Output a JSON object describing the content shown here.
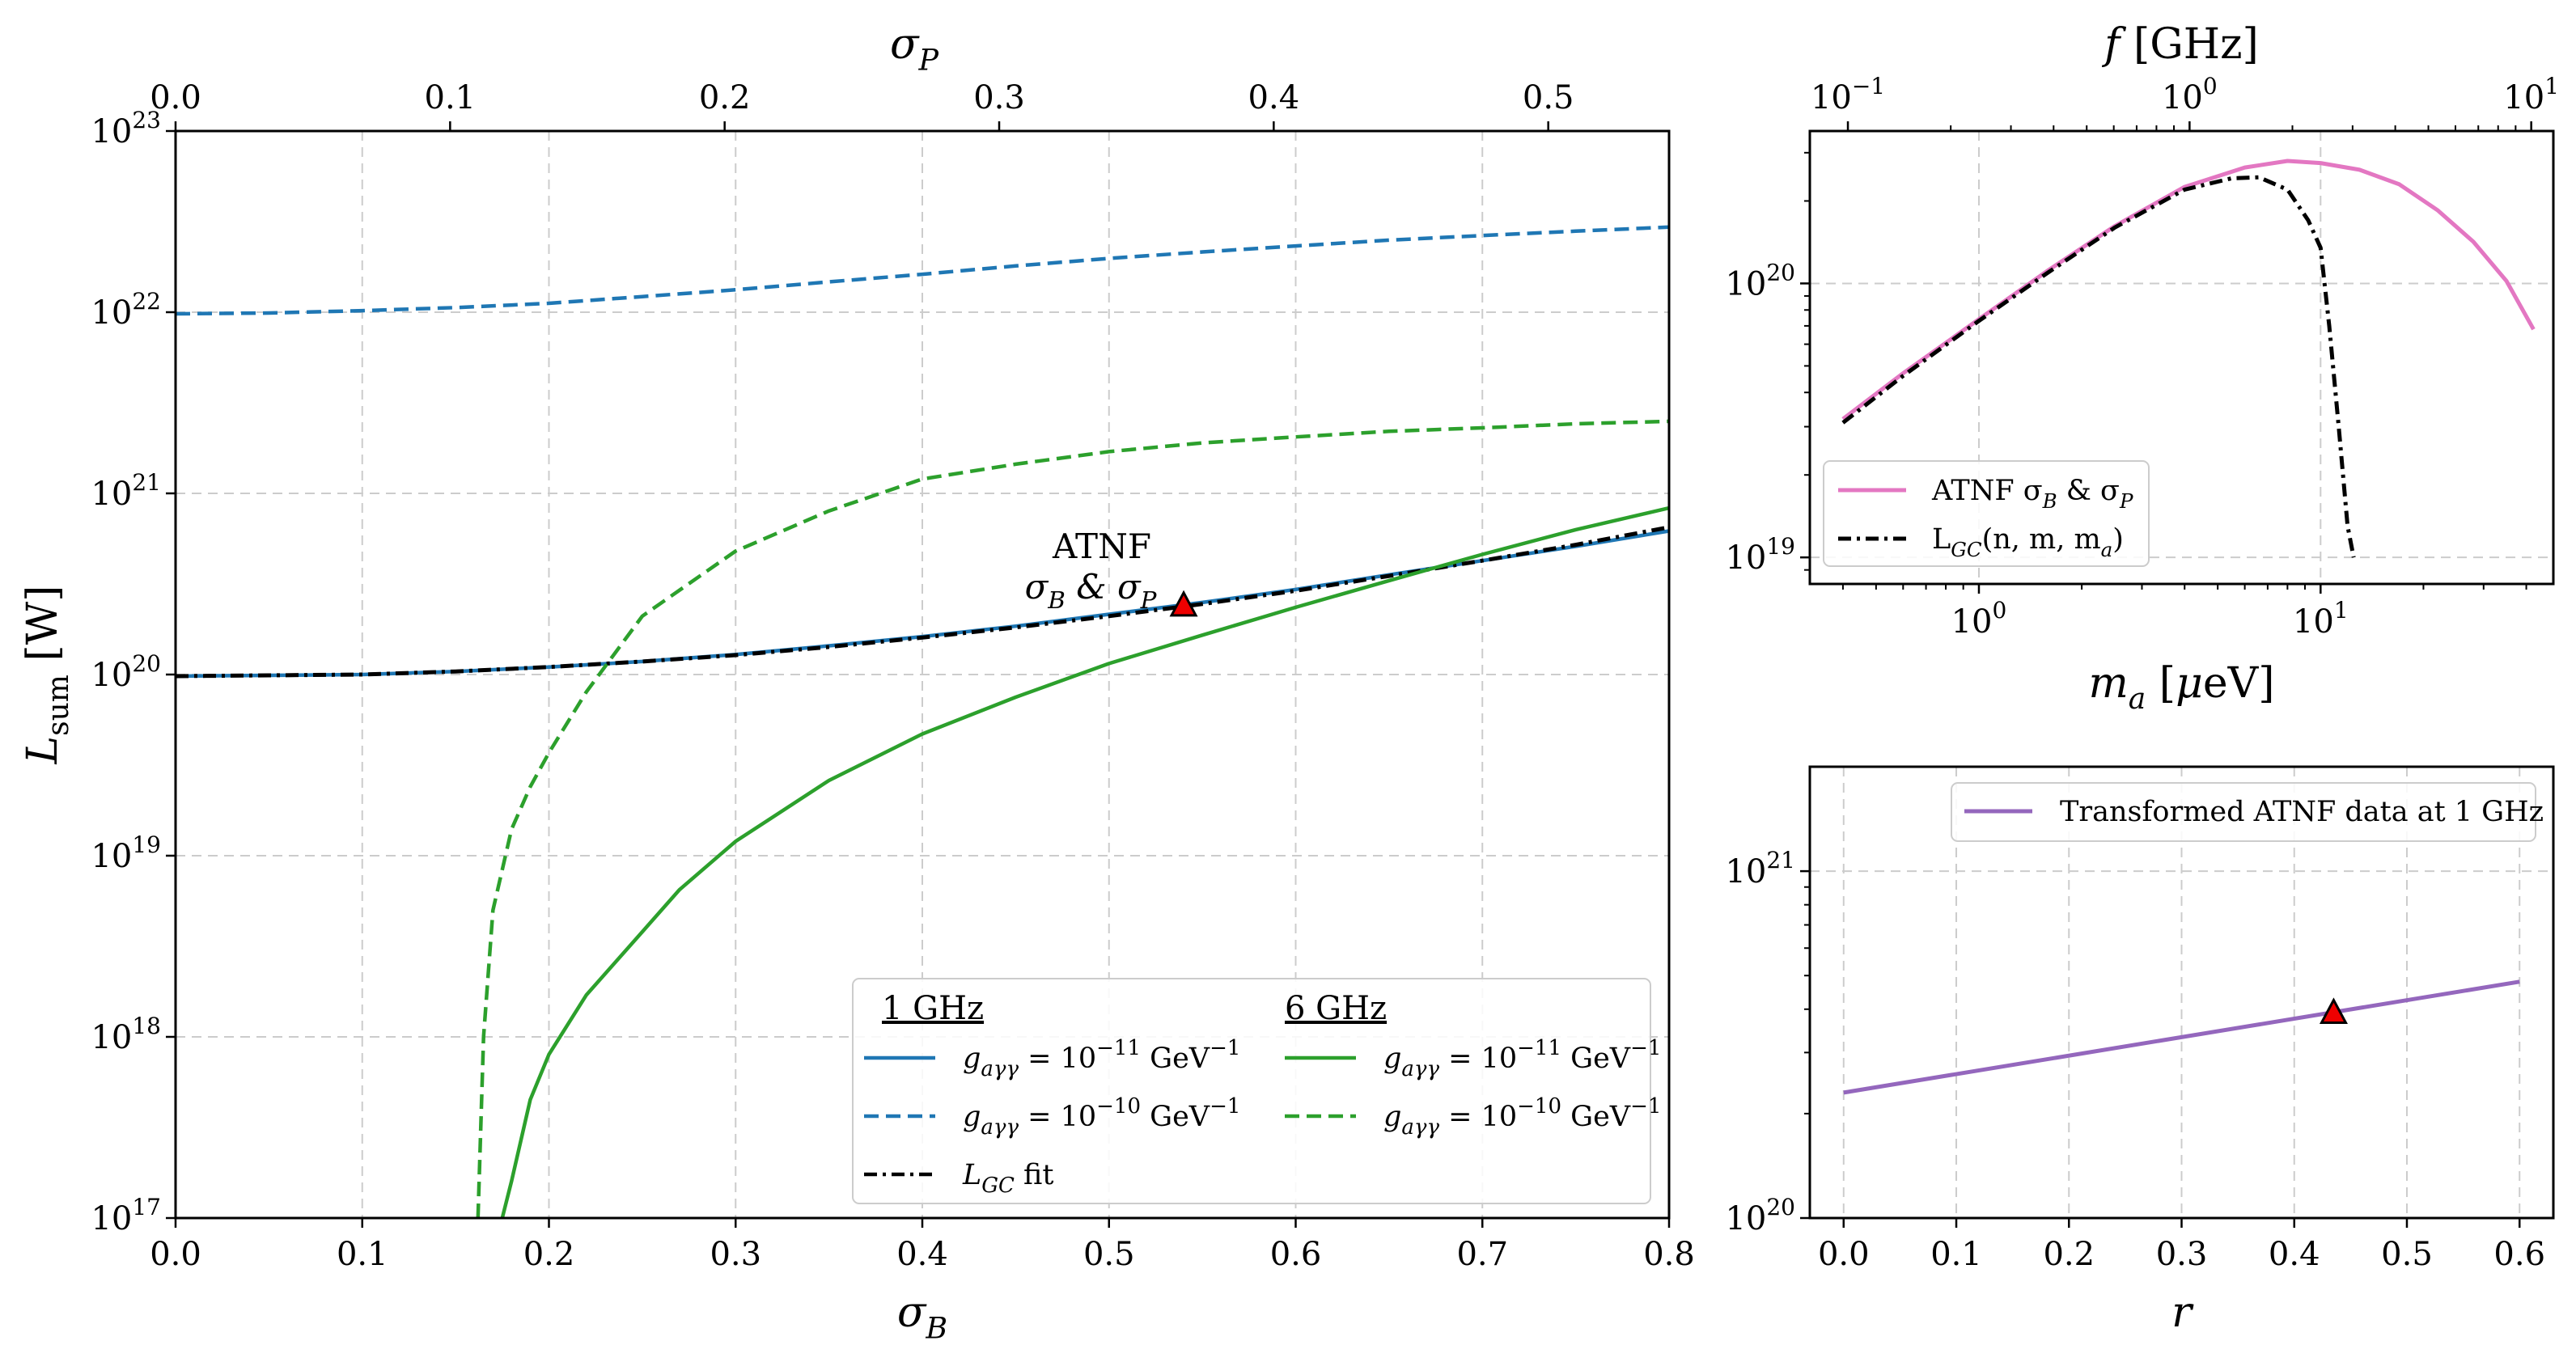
{
  "chart_data": [
    {
      "id": "main",
      "type": "line",
      "xlabel": "σ_B",
      "top_xlabel": "σ_P",
      "ylabel": "L_sum [W]",
      "xlim": [
        0.0,
        0.8
      ],
      "top_xlim": [
        0.0,
        0.544
      ],
      "ylog": true,
      "ylim": [
        1e+17,
        1e+23
      ],
      "x_ticks": [
        "0.0",
        "0.1",
        "0.2",
        "0.3",
        "0.4",
        "0.5",
        "0.6",
        "0.7",
        "0.8"
      ],
      "top_ticks": [
        "0.0",
        "0.1",
        "0.2",
        "0.3",
        "0.4",
        "0.5"
      ],
      "y_ticks": [
        {
          "mant": "10",
          "exp": "17"
        },
        {
          "mant": "10",
          "exp": "18"
        },
        {
          "mant": "10",
          "exp": "19"
        },
        {
          "mant": "10",
          "exp": "20"
        },
        {
          "mant": "10",
          "exp": "21"
        },
        {
          "mant": "10",
          "exp": "22"
        },
        {
          "mant": "10",
          "exp": "23"
        }
      ],
      "grid": true,
      "annotation": {
        "line1": "ATNF",
        "line2": "σ_B & σ_P",
        "x": 0.54,
        "y": 2.4e+20
      },
      "series": [
        {
          "name": "1 GHz, g_aγγ = 10^-11 GeV^-1",
          "color": "#1f77b4",
          "dash": "solid",
          "x": [
            0,
            0.05,
            0.1,
            0.15,
            0.2,
            0.25,
            0.3,
            0.35,
            0.4,
            0.45,
            0.5,
            0.55,
            0.6,
            0.65,
            0.7,
            0.75,
            0.8
          ],
          "y": [
            9.8e+19,
            9.9e+19,
            1e+20,
            1.04e+20,
            1.1e+20,
            1.18e+20,
            1.29e+20,
            1.44e+20,
            1.62e+20,
            1.85e+20,
            2.15e+20,
            2.5e+20,
            2.95e+20,
            3.55e+20,
            4.25e+20,
            5.1e+20,
            6.2e+20
          ]
        },
        {
          "name": "1 GHz, g_aγγ = 10^-10 GeV^-1",
          "color": "#1f77b4",
          "dash": "dashed",
          "x": [
            0,
            0.05,
            0.1,
            0.15,
            0.2,
            0.25,
            0.3,
            0.35,
            0.4,
            0.45,
            0.5,
            0.55,
            0.6,
            0.65,
            0.7,
            0.75,
            0.8
          ],
          "y": [
            9.8e+21,
            9.9e+21,
            1.02e+22,
            1.06e+22,
            1.12e+22,
            1.22e+22,
            1.33e+22,
            1.47e+22,
            1.62e+22,
            1.8e+22,
            1.98e+22,
            2.15e+22,
            2.32e+22,
            2.5e+22,
            2.65e+22,
            2.8e+22,
            2.95e+22
          ]
        },
        {
          "name": "L_GC fit",
          "color": "#000000",
          "dash": "dashdot",
          "x": [
            0,
            0.05,
            0.1,
            0.15,
            0.2,
            0.25,
            0.3,
            0.35,
            0.4,
            0.45,
            0.5,
            0.55,
            0.6,
            0.65,
            0.7,
            0.75,
            0.8
          ],
          "y": [
            9.8e+19,
            9.9e+19,
            1e+20,
            1.04e+20,
            1.1e+20,
            1.18e+20,
            1.28e+20,
            1.42e+20,
            1.6e+20,
            1.82e+20,
            2.1e+20,
            2.45e+20,
            2.9e+20,
            3.5e+20,
            4.25e+20,
            5.2e+20,
            6.5e+20
          ]
        },
        {
          "name": "6 GHz, g_aγγ = 10^-11 GeV^-1",
          "color": "#2ca02c",
          "dash": "solid",
          "x": [
            0.175,
            0.18,
            0.19,
            0.2,
            0.22,
            0.25,
            0.27,
            0.3,
            0.35,
            0.4,
            0.45,
            0.5,
            0.55,
            0.6,
            0.65,
            0.7,
            0.75,
            0.8
          ],
          "y": [
            1e+17,
            1.6e+17,
            4.5e+17,
            8e+17,
            1.7e+18,
            3.8e+18,
            6.5e+18,
            1.2e+19,
            2.6e+19,
            4.7e+19,
            7.5e+19,
            1.15e+20,
            1.65e+20,
            2.35e+20,
            3.3e+20,
            4.6e+20,
            6.3e+20,
            8.3e+20
          ]
        },
        {
          "name": "6 GHz, g_aγγ = 10^-10 GeV^-1",
          "color": "#2ca02c",
          "dash": "dashed",
          "x": [
            0.162,
            0.165,
            0.17,
            0.18,
            0.19,
            0.2,
            0.22,
            0.25,
            0.3,
            0.35,
            0.4,
            0.45,
            0.5,
            0.55,
            0.6,
            0.65,
            0.7,
            0.75,
            0.8
          ],
          "y": [
            1e+17,
            1e+18,
            5e+18,
            1.4e+19,
            2.4e+19,
            3.7e+19,
            8e+19,
            2.1e+20,
            4.8e+20,
            8e+20,
            1.2e+21,
            1.45e+21,
            1.7e+21,
            1.9e+21,
            2.05e+21,
            2.2e+21,
            2.3e+21,
            2.42e+21,
            2.5e+21
          ]
        }
      ],
      "legend": {
        "col1_title": "1 GHz",
        "col2_title": "6 GHz",
        "entries": [
          {
            "pre": "g",
            "sub": "aγγ",
            "mid": " = 10",
            "sup": "−11",
            "post": " GeV",
            "post_sup": "−1",
            "color": "#1f77b4",
            "dash": "solid",
            "col": 1,
            "row": 0
          },
          {
            "pre": "g",
            "sub": "aγγ",
            "mid": " = 10",
            "sup": "−10",
            "post": " GeV",
            "post_sup": "−1",
            "color": "#1f77b4",
            "dash": "dashed",
            "col": 1,
            "row": 1
          },
          {
            "pre": "L",
            "sub": "GC",
            "mid": " fit",
            "sup": "",
            "post": "",
            "post_sup": "",
            "color": "#000000",
            "dash": "dashdot",
            "col": 1,
            "row": 2
          },
          {
            "pre": "g",
            "sub": "aγγ",
            "mid": " = 10",
            "sup": "−11",
            "post": " GeV",
            "post_sup": "−1",
            "color": "#2ca02c",
            "dash": "solid",
            "col": 2,
            "row": 0
          },
          {
            "pre": "g",
            "sub": "aγγ",
            "mid": " = 10",
            "sup": "−10",
            "post": " GeV",
            "post_sup": "−1",
            "color": "#2ca02c",
            "dash": "dashed",
            "col": 2,
            "row": 1
          }
        ]
      }
    },
    {
      "id": "topright",
      "type": "line",
      "xlabel": "m_a [μeV]",
      "top_xlabel": "f [GHz]",
      "xlog": true,
      "ylog": true,
      "xlim": [
        0.32,
        48
      ],
      "ylim": [
        8e+18,
        3.6e+20
      ],
      "x_ticks": [
        {
          "mant": "10",
          "exp": "0",
          "v": 1
        },
        {
          "mant": "10",
          "exp": "1",
          "v": 10
        }
      ],
      "top_ticks": [
        {
          "mant": "10",
          "exp": "−1",
          "v": 0.1
        },
        {
          "mant": "10",
          "exp": "0",
          "v": 1
        },
        {
          "mant": "10",
          "exp": "1",
          "v": 10
        }
      ],
      "y_ticks": [
        {
          "mant": "10",
          "exp": "19",
          "v": 1e+19
        },
        {
          "mant": "10",
          "exp": "20",
          "v": 1e+20
        }
      ],
      "grid": true,
      "series": [
        {
          "name": "ATNF σ_B & σ_P",
          "color": "#e377c2",
          "dash": "solid",
          "x": [
            0.4,
            0.6,
            1.0,
            1.6,
            2.5,
            4.0,
            6.0,
            8.0,
            10.0,
            13.0,
            17.0,
            22.0,
            28.0,
            35.0,
            42.0
          ],
          "y": [
            3.2e+19,
            4.7e+19,
            7.4e+19,
            1.12e+20,
            1.62e+20,
            2.25e+20,
            2.65e+20,
            2.8e+20,
            2.75e+20,
            2.6e+20,
            2.3e+20,
            1.85e+20,
            1.42e+20,
            1.02e+20,
            6.8e+19
          ]
        },
        {
          "name": "L_GC(n, m, m_a)",
          "color": "#000000",
          "dash": "dashdot",
          "x": [
            0.4,
            0.6,
            1.0,
            1.6,
            2.5,
            4.0,
            5.5,
            6.6,
            8.0,
            9.2,
            10.0,
            10.6,
            11.3,
            12.0,
            12.5
          ],
          "y": [
            3.1e+19,
            4.6e+19,
            7.3e+19,
            1.1e+20,
            1.6e+20,
            2.2e+20,
            2.42e+20,
            2.44e+20,
            2.2e+20,
            1.7e+20,
            1.35e+20,
            7e+19,
            3e+19,
            1.3e+19,
            1e+19
          ]
        }
      ],
      "legend": {
        "entries": [
          {
            "text": "ATNF σ_B & σ_P",
            "color": "#e377c2",
            "dash": "solid"
          },
          {
            "text": "L_GC(n, m, m_a)",
            "color": "#000000",
            "dash": "dashdot"
          }
        ]
      }
    },
    {
      "id": "bottomright",
      "type": "line",
      "xlabel": "r",
      "xlim": [
        -0.03,
        0.63
      ],
      "ylog": true,
      "ylim": [
        1e+20,
        2e+21
      ],
      "x_ticks": [
        "0.0",
        "0.1",
        "0.2",
        "0.3",
        "0.4",
        "0.5",
        "0.6"
      ],
      "y_ticks": [
        {
          "mant": "10",
          "exp": "20",
          "v": 1e+20
        },
        {
          "mant": "10",
          "exp": "21",
          "v": 1e+21
        }
      ],
      "grid": true,
      "marker": {
        "x": 0.435,
        "y": 3.9e+20
      },
      "series": [
        {
          "name": "Transformed ATNF data at 1 GHz",
          "color": "#9467bd",
          "dash": "solid",
          "x": [
            0.0,
            0.6
          ],
          "y": [
            2.3e+20,
            4.8e+20
          ]
        }
      ],
      "legend": {
        "entries": [
          {
            "text": "Transformed ATNF data at 1 GHz",
            "color": "#9467bd",
            "dash": "solid"
          }
        ]
      }
    }
  ]
}
